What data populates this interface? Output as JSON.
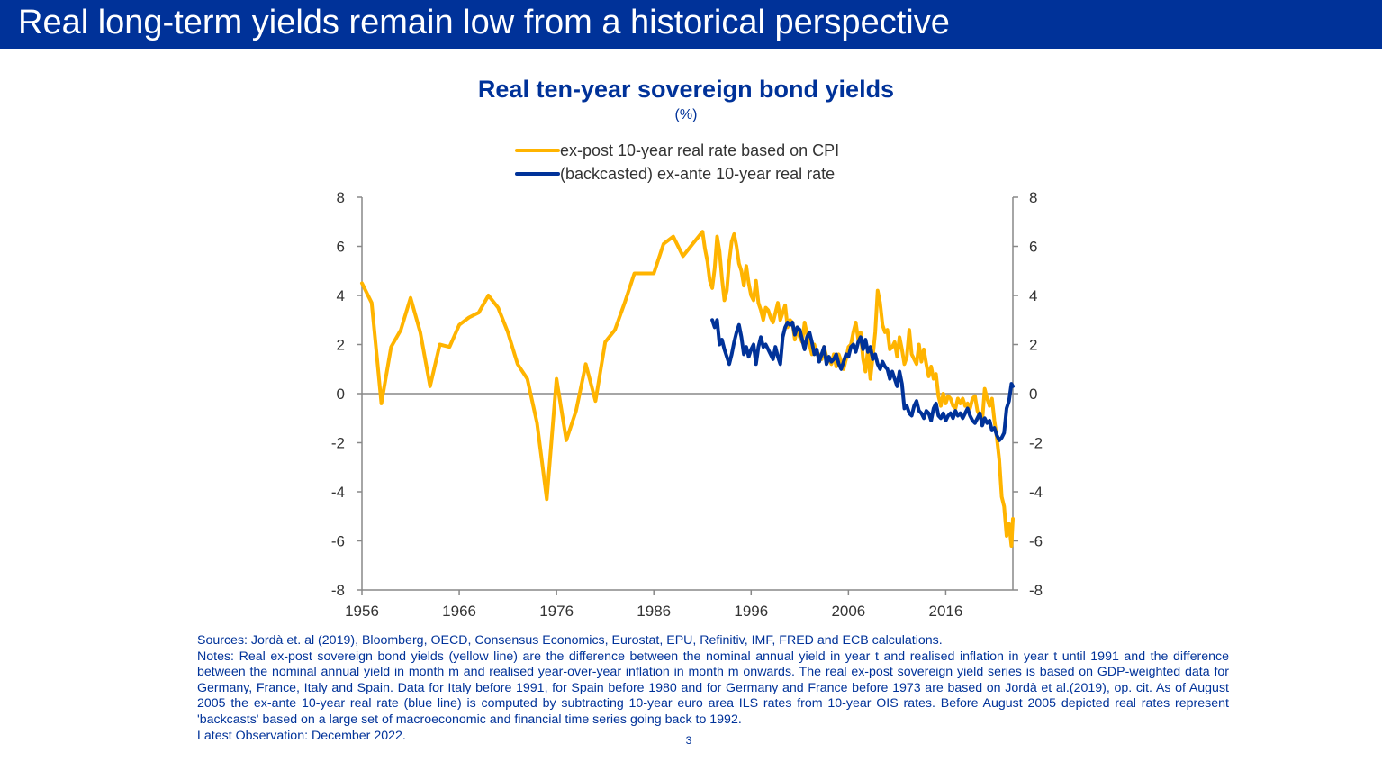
{
  "banner": {
    "title": "Real long-term yields remain low from a historical perspective"
  },
  "colors": {
    "banner": "#003299",
    "series_cpi": "#FFB400",
    "series_exante": "#003299",
    "axis": "#888888",
    "text": "#333333"
  },
  "chart_data": {
    "type": "line",
    "title": "Real ten-year sovereign bond yields",
    "subtitle": "(%)",
    "xlabel": "",
    "ylabel": "",
    "xlim": [
      1956,
      2022.9
    ],
    "ylim": [
      -8,
      8
    ],
    "x_ticks": [
      "1956",
      "1966",
      "1976",
      "1986",
      "1996",
      "2006",
      "2016"
    ],
    "y_ticks_left": [
      "8",
      "6",
      "4",
      "2",
      "0",
      "-2",
      "-4",
      "-6",
      "-8"
    ],
    "y_ticks_right": [
      "8",
      "6",
      "4",
      "2",
      "0",
      "-2",
      "-4",
      "-6",
      "-8"
    ],
    "grid": false,
    "legend_position": "top-center",
    "series": [
      {
        "name": "ex-post 10-year real rate based on CPI",
        "color": "#FFB400",
        "x": [
          1956,
          1957,
          1958,
          1959,
          1960,
          1961,
          1962,
          1963,
          1964,
          1965,
          1966,
          1967,
          1968,
          1969,
          1970,
          1971,
          1972,
          1973,
          1974,
          1975,
          1976,
          1977,
          1978,
          1979,
          1980,
          1981,
          1982,
          1983,
          1984,
          1985,
          1986,
          1987,
          1988,
          1989,
          1990,
          1991.0,
          1991.25,
          1991.5,
          1991.75,
          1992.0,
          1992.25,
          1992.5,
          1992.75,
          1993.0,
          1993.25,
          1993.5,
          1993.75,
          1994.0,
          1994.25,
          1994.5,
          1994.75,
          1995.0,
          1995.25,
          1995.5,
          1995.75,
          1996.0,
          1996.25,
          1996.5,
          1996.75,
          1997.0,
          1997.25,
          1997.5,
          1997.75,
          1998.0,
          1998.25,
          1998.5,
          1998.75,
          1999.0,
          1999.25,
          1999.5,
          1999.75,
          2000.0,
          2000.25,
          2000.5,
          2000.75,
          2001.0,
          2001.25,
          2001.5,
          2001.75,
          2002.0,
          2002.25,
          2002.5,
          2002.75,
          2003.0,
          2003.25,
          2003.5,
          2003.75,
          2004.0,
          2004.25,
          2004.5,
          2004.75,
          2005.0,
          2005.25,
          2005.5,
          2005.75,
          2006.0,
          2006.25,
          2006.5,
          2006.75,
          2007.0,
          2007.25,
          2007.5,
          2007.75,
          2008.0,
          2008.25,
          2008.5,
          2008.75,
          2009.0,
          2009.25,
          2009.5,
          2009.75,
          2010.0,
          2010.25,
          2010.5,
          2010.75,
          2011.0,
          2011.25,
          2011.5,
          2011.75,
          2012.0,
          2012.25,
          2012.5,
          2012.75,
          2013.0,
          2013.25,
          2013.5,
          2013.75,
          2014.0,
          2014.25,
          2014.5,
          2014.75,
          2015.0,
          2015.25,
          2015.5,
          2015.75,
          2016.0,
          2016.25,
          2016.5,
          2016.75,
          2017.0,
          2017.25,
          2017.5,
          2017.75,
          2018.0,
          2018.25,
          2018.5,
          2018.75,
          2019.0,
          2019.25,
          2019.5,
          2019.75,
          2020.0,
          2020.25,
          2020.5,
          2020.75,
          2021.0,
          2021.25,
          2021.5,
          2021.75,
          2022.0,
          2022.25,
          2022.5,
          2022.75,
          2022.9
        ],
        "y": [
          4.5,
          3.7,
          -0.4,
          1.9,
          2.6,
          3.9,
          2.5,
          0.3,
          2.0,
          1.9,
          2.8,
          3.1,
          3.3,
          4.0,
          3.5,
          2.5,
          1.2,
          0.6,
          -1.2,
          -4.3,
          0.6,
          -1.9,
          -0.7,
          1.2,
          -0.3,
          2.1,
          2.6,
          3.7,
          4.9,
          4.9,
          4.9,
          6.1,
          6.4,
          5.6,
          6.1,
          6.6,
          5.9,
          5.4,
          4.6,
          4.3,
          5.1,
          6.4,
          5.8,
          4.7,
          3.8,
          4.2,
          5.4,
          6.2,
          6.5,
          6.0,
          5.3,
          5.0,
          4.4,
          5.2,
          4.5,
          4.0,
          3.8,
          4.6,
          3.7,
          3.4,
          3.0,
          3.5,
          3.4,
          3.1,
          2.9,
          3.3,
          3.7,
          3.0,
          3.3,
          3.6,
          2.7,
          3.0,
          2.9,
          2.2,
          2.7,
          2.3,
          2.1,
          2.9,
          2.4,
          2.0,
          1.6,
          2.0,
          1.6,
          1.6,
          1.4,
          1.9,
          1.5,
          1.4,
          1.2,
          1.6,
          1.1,
          1.6,
          1.3,
          1.0,
          1.4,
          1.9,
          2.0,
          2.5,
          2.9,
          2.2,
          2.5,
          1.4,
          0.9,
          1.8,
          0.6,
          1.5,
          2.5,
          4.2,
          3.7,
          2.8,
          2.5,
          2.6,
          1.8,
          1.9,
          2.1,
          1.5,
          2.3,
          1.8,
          1.2,
          1.5,
          2.6,
          1.6,
          1.4,
          1.2,
          2.0,
          1.3,
          1.8,
          1.2,
          0.7,
          1.1,
          0.6,
          0.8,
          -0.1,
          -0.5,
          0.0,
          -0.4,
          -0.1,
          -0.2,
          -0.5,
          -0.6,
          -0.2,
          -0.4,
          -0.2,
          -0.5,
          -0.4,
          -0.6,
          -0.2,
          -0.1,
          -0.7,
          -0.9,
          -1.1,
          0.2,
          -0.2,
          -0.5,
          -0.2,
          -1.1,
          -1.8,
          -2.7,
          -4.2,
          -4.6,
          -5.8,
          -5.3,
          -6.2,
          -5.1
        ]
      },
      {
        "name": "(backcasted) ex-ante 10-year real rate",
        "color": "#003299",
        "x": [
          1992.0,
          1992.25,
          1992.5,
          1992.75,
          1993.0,
          1993.25,
          1993.5,
          1993.75,
          1994.0,
          1994.25,
          1994.5,
          1994.75,
          1995.0,
          1995.25,
          1995.5,
          1995.75,
          1996.0,
          1996.25,
          1996.5,
          1996.75,
          1997.0,
          1997.25,
          1997.5,
          1997.75,
          1998.0,
          1998.25,
          1998.5,
          1998.75,
          1999.0,
          1999.25,
          1999.5,
          1999.75,
          2000.0,
          2000.25,
          2000.5,
          2000.75,
          2001.0,
          2001.25,
          2001.5,
          2001.75,
          2002.0,
          2002.25,
          2002.5,
          2002.75,
          2003.0,
          2003.25,
          2003.5,
          2003.75,
          2004.0,
          2004.25,
          2004.5,
          2004.75,
          2005.0,
          2005.25,
          2005.5,
          2005.75,
          2006.0,
          2006.25,
          2006.5,
          2006.75,
          2007.0,
          2007.25,
          2007.5,
          2007.75,
          2008.0,
          2008.25,
          2008.5,
          2008.75,
          2009.0,
          2009.25,
          2009.5,
          2009.75,
          2010.0,
          2010.25,
          2010.5,
          2010.75,
          2011.0,
          2011.25,
          2011.5,
          2011.75,
          2012.0,
          2012.25,
          2012.5,
          2012.75,
          2013.0,
          2013.25,
          2013.5,
          2013.75,
          2014.0,
          2014.25,
          2014.5,
          2014.75,
          2015.0,
          2015.25,
          2015.5,
          2015.75,
          2016.0,
          2016.25,
          2016.5,
          2016.75,
          2017.0,
          2017.25,
          2017.5,
          2017.75,
          2018.0,
          2018.25,
          2018.5,
          2018.75,
          2019.0,
          2019.25,
          2019.5,
          2019.75,
          2020.0,
          2020.25,
          2020.5,
          2020.75,
          2021.0,
          2021.25,
          2021.5,
          2021.75,
          2022.0,
          2022.25,
          2022.5,
          2022.75,
          2022.9
        ],
        "y": [
          3.0,
          2.7,
          3.0,
          2.0,
          2.2,
          1.8,
          1.5,
          1.2,
          1.6,
          2.1,
          2.5,
          2.8,
          2.3,
          1.6,
          1.9,
          1.5,
          1.8,
          2.0,
          1.2,
          1.9,
          2.3,
          1.9,
          2.0,
          1.8,
          1.6,
          1.4,
          1.9,
          1.5,
          1.2,
          2.3,
          2.7,
          2.9,
          2.8,
          2.9,
          2.4,
          2.7,
          2.6,
          2.2,
          1.8,
          2.3,
          2.5,
          2.1,
          1.6,
          1.8,
          1.3,
          1.6,
          1.9,
          1.2,
          1.5,
          1.3,
          1.4,
          1.6,
          1.2,
          1.0,
          1.3,
          1.6,
          1.5,
          1.9,
          2.0,
          1.7,
          2.1,
          2.3,
          1.8,
          2.2,
          1.7,
          1.9,
          1.4,
          1.6,
          1.2,
          1.0,
          1.3,
          1.1,
          1.0,
          0.6,
          0.9,
          0.6,
          0.3,
          0.9,
          0.4,
          -0.6,
          -0.5,
          -0.8,
          -0.9,
          -0.5,
          -0.3,
          -0.7,
          -0.8,
          -1.0,
          -0.7,
          -0.8,
          -1.1,
          -0.6,
          -0.4,
          -0.9,
          -1.0,
          -0.8,
          -1.1,
          -0.9,
          -0.8,
          -1.0,
          -0.7,
          -0.9,
          -0.8,
          -1.0,
          -0.8,
          -0.6,
          -0.9,
          -1.1,
          -1.2,
          -1.0,
          -0.8,
          -1.3,
          -1.0,
          -1.2,
          -1.1,
          -1.5,
          -1.4,
          -1.7,
          -1.9,
          -1.8,
          -1.6,
          -0.6,
          -0.3,
          0.4,
          0.3
        ]
      }
    ]
  },
  "footnotes": {
    "sources": "Sources: Jordà et. al (2019), Bloomberg, OECD, Consensus Economics, Eurostat, EPU, Refinitiv, IMF, FRED and ECB calculations.",
    "notes": "Notes: Real ex-post sovereign bond yields (yellow line) are the difference between the nominal annual yield in year t and realised inflation in year t until 1991 and the difference between the nominal annual yield in month m and realised year-over-year inflation in month m onwards. The real ex-post sovereign yield series is based on GDP-weighted data for Germany, France, Italy and Spain. Data for Italy before 1991, for Spain before 1980 and for Germany and France before 1973 are based on Jordà et al.(2019), op. cit. As of August 2005 the ex-ante 10-year real rate (blue line) is computed by subtracting 10-year euro area ILS rates from 10-year OIS rates. Before August 2005 depicted real rates represent 'backcasts' based on a large set of macroeconomic and financial time series going back to 1992.",
    "latest": "Latest Observation: December 2022."
  },
  "page_number": "3"
}
